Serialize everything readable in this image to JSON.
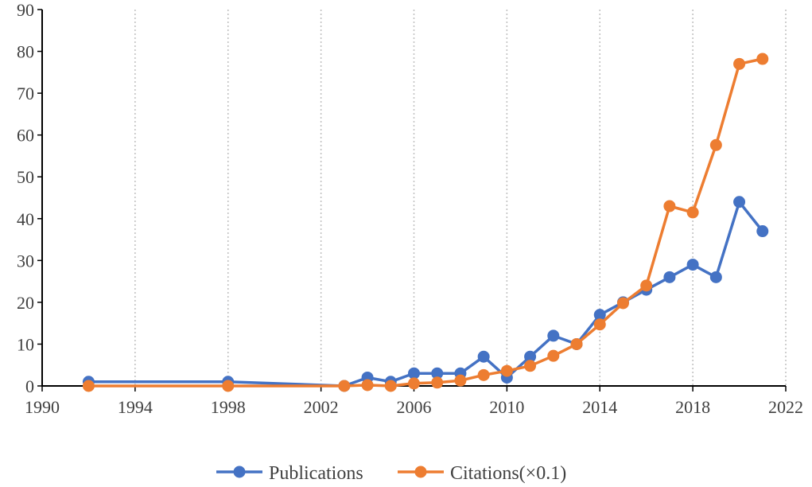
{
  "chart_data": {
    "type": "line",
    "xlim": [
      1990,
      2022
    ],
    "ylim": [
      0,
      90
    ],
    "x_ticks": [
      1990,
      1994,
      1998,
      2002,
      2006,
      2010,
      2014,
      2018,
      2022
    ],
    "y_ticks": [
      0,
      10,
      20,
      30,
      40,
      50,
      60,
      70,
      80,
      90
    ],
    "grid": "vertical dotted",
    "legend_position": "bottom-center",
    "series": [
      {
        "name": "Publications",
        "color": "#4472C4",
        "points": [
          {
            "x": 1992,
            "y": 1
          },
          {
            "x": 1998,
            "y": 1
          },
          {
            "x": 2003,
            "y": 0
          },
          {
            "x": 2004,
            "y": 2
          },
          {
            "x": 2005,
            "y": 1
          },
          {
            "x": 2006,
            "y": 3
          },
          {
            "x": 2007,
            "y": 3
          },
          {
            "x": 2008,
            "y": 3
          },
          {
            "x": 2009,
            "y": 7
          },
          {
            "x": 2010,
            "y": 2
          },
          {
            "x": 2011,
            "y": 7
          },
          {
            "x": 2012,
            "y": 12
          },
          {
            "x": 2013,
            "y": 10
          },
          {
            "x": 2014,
            "y": 17
          },
          {
            "x": 2015,
            "y": 20
          },
          {
            "x": 2016,
            "y": 23
          },
          {
            "x": 2017,
            "y": 26
          },
          {
            "x": 2018,
            "y": 29
          },
          {
            "x": 2019,
            "y": 26
          },
          {
            "x": 2020,
            "y": 44
          },
          {
            "x": 2021,
            "y": 37
          }
        ]
      },
      {
        "name": "Citations(×0.1)",
        "color": "#ED7D31",
        "points": [
          {
            "x": 1992,
            "y": 0
          },
          {
            "x": 1998,
            "y": 0
          },
          {
            "x": 2003,
            "y": 0
          },
          {
            "x": 2004,
            "y": 0.2
          },
          {
            "x": 2005,
            "y": 0
          },
          {
            "x": 2006,
            "y": 0.6
          },
          {
            "x": 2007,
            "y": 0.8
          },
          {
            "x": 2008,
            "y": 1.3
          },
          {
            "x": 2009,
            "y": 2.6
          },
          {
            "x": 2010,
            "y": 3.6
          },
          {
            "x": 2011,
            "y": 4.8
          },
          {
            "x": 2012,
            "y": 7.2
          },
          {
            "x": 2013,
            "y": 10
          },
          {
            "x": 2014,
            "y": 14.7
          },
          {
            "x": 2015,
            "y": 19.8
          },
          {
            "x": 2016,
            "y": 24
          },
          {
            "x": 2017,
            "y": 43
          },
          {
            "x": 2018,
            "y": 41.5
          },
          {
            "x": 2019,
            "y": 57.6
          },
          {
            "x": 2020,
            "y": 77
          },
          {
            "x": 2021,
            "y": 78.2
          }
        ]
      }
    ],
    "colors": {
      "axis": "#000000",
      "grid": "#bfbfbf",
      "text": "#404040"
    }
  }
}
